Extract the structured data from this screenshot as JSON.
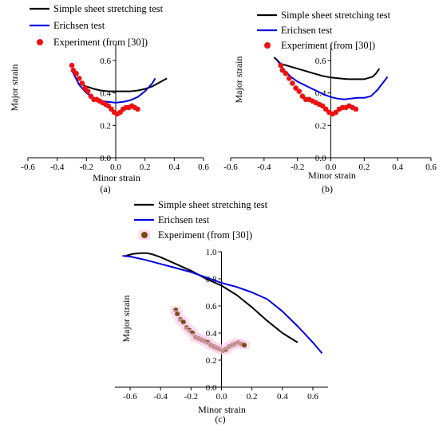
{
  "chart_data": [
    {
      "type": "line",
      "panel_label": "(a)",
      "xlabel": "Minor strain",
      "ylabel": "Major strain",
      "xlim": [
        -0.6,
        0.6
      ],
      "ylim": [
        0.0,
        0.7
      ],
      "xticks": [
        "-0.6",
        "-0.4",
        "-0.2",
        "0.0",
        "0.2",
        "0.4",
        "0.6"
      ],
      "yticks": [
        "0.0",
        "0.2",
        "0.4",
        "0.6"
      ],
      "legend_position": "top-left",
      "series": [
        {
          "name": "Simple sheet stretching test",
          "kind": "line",
          "color": "#000000",
          "x": [
            -0.25,
            -0.2,
            -0.15,
            -0.1,
            -0.05,
            0.0,
            0.05,
            0.1,
            0.15,
            0.2,
            0.25,
            0.3,
            0.35
          ],
          "y": [
            0.46,
            0.44,
            0.425,
            0.415,
            0.41,
            0.41,
            0.41,
            0.41,
            0.415,
            0.425,
            0.44,
            0.465,
            0.49
          ]
        },
        {
          "name": "Erichsen test",
          "kind": "line",
          "color": "#0000dd",
          "x": [
            -0.3,
            -0.25,
            -0.2,
            -0.15,
            -0.1,
            -0.05,
            0.0,
            0.05,
            0.1,
            0.15,
            0.2,
            0.25,
            0.27
          ],
          "y": [
            0.54,
            0.45,
            0.4,
            0.37,
            0.35,
            0.345,
            0.34,
            0.345,
            0.355,
            0.375,
            0.41,
            0.46,
            0.49
          ]
        },
        {
          "name": "Experiment (from [30])",
          "kind": "scatter",
          "color": "#ee1111",
          "x": [
            -0.3,
            -0.29,
            -0.27,
            -0.25,
            -0.23,
            -0.21,
            -0.19,
            -0.17,
            -0.15,
            -0.13,
            -0.11,
            -0.09,
            -0.07,
            -0.05,
            -0.03,
            -0.01,
            0.01,
            0.03,
            0.05,
            0.07,
            0.09,
            0.11,
            0.13,
            0.15
          ],
          "y": [
            0.57,
            0.54,
            0.52,
            0.49,
            0.46,
            0.43,
            0.41,
            0.38,
            0.36,
            0.36,
            0.35,
            0.34,
            0.33,
            0.32,
            0.3,
            0.28,
            0.27,
            0.28,
            0.3,
            0.31,
            0.31,
            0.32,
            0.31,
            0.3
          ]
        }
      ]
    },
    {
      "type": "line",
      "panel_label": "(b)",
      "xlabel": "Minor strain",
      "ylabel": "Major strain",
      "xlim": [
        -0.6,
        0.6
      ],
      "ylim": [
        0.0,
        0.7
      ],
      "xticks": [
        "-0.6",
        "-0.4",
        "-0.2",
        "0.0",
        "0.2",
        "0.4",
        "0.6"
      ],
      "yticks": [
        "0.0",
        "0.2",
        "0.4",
        "0.6"
      ],
      "legend_position": "top-left",
      "series": [
        {
          "name": "Simple sheet stretching test",
          "kind": "line",
          "color": "#000000",
          "x": [
            -0.34,
            -0.3,
            -0.25,
            -0.2,
            -0.15,
            -0.1,
            -0.05,
            0.0,
            0.05,
            0.1,
            0.15,
            0.2,
            0.25,
            0.27,
            0.29
          ],
          "y": [
            0.62,
            0.58,
            0.565,
            0.55,
            0.535,
            0.52,
            0.505,
            0.495,
            0.49,
            0.485,
            0.485,
            0.485,
            0.5,
            0.52,
            0.55
          ]
        },
        {
          "name": "Erichsen test",
          "kind": "line",
          "color": "#0000dd",
          "x": [
            -0.32,
            -0.28,
            -0.24,
            -0.2,
            -0.16,
            -0.12,
            -0.08,
            -0.04,
            0.0,
            0.04,
            0.08,
            0.12,
            0.16,
            0.2,
            0.24,
            0.28,
            0.31,
            0.34
          ],
          "y": [
            0.6,
            0.54,
            0.5,
            0.47,
            0.45,
            0.43,
            0.41,
            0.39,
            0.375,
            0.365,
            0.36,
            0.365,
            0.37,
            0.37,
            0.38,
            0.42,
            0.46,
            0.5
          ]
        },
        {
          "name": "Experiment (from [30])",
          "kind": "scatter",
          "color": "#ee1111",
          "x": [
            -0.3,
            -0.29,
            -0.27,
            -0.25,
            -0.23,
            -0.21,
            -0.19,
            -0.17,
            -0.15,
            -0.13,
            -0.11,
            -0.09,
            -0.07,
            -0.05,
            -0.03,
            -0.01,
            0.01,
            0.03,
            0.05,
            0.07,
            0.09,
            0.11,
            0.13,
            0.15
          ],
          "y": [
            0.57,
            0.54,
            0.52,
            0.49,
            0.46,
            0.43,
            0.41,
            0.38,
            0.36,
            0.36,
            0.35,
            0.34,
            0.33,
            0.32,
            0.3,
            0.28,
            0.27,
            0.28,
            0.3,
            0.31,
            0.31,
            0.32,
            0.31,
            0.3
          ]
        }
      ]
    },
    {
      "type": "line",
      "panel_label": "(c)",
      "xlabel": "Minor strain",
      "ylabel": "Major strain",
      "xlim": [
        -0.7,
        0.7
      ],
      "ylim": [
        0.0,
        1.0
      ],
      "xticks": [
        "-0.6",
        "-0.4",
        "-0.2",
        "0.0",
        "0.2",
        "0.4",
        "0.6"
      ],
      "yticks": [
        "0.0",
        "0.2",
        "0.4",
        "0.6",
        "0.8",
        "1.0"
      ],
      "legend_position": "top-left",
      "series": [
        {
          "name": "Simple sheet stretching test",
          "kind": "line",
          "color": "#000000",
          "x": [
            -0.63,
            -0.58,
            -0.53,
            -0.49,
            -0.45,
            -0.4,
            -0.3,
            -0.2,
            -0.1,
            0.0,
            0.1,
            0.2,
            0.3,
            0.4,
            0.5
          ],
          "y": [
            0.97,
            0.985,
            0.99,
            0.99,
            0.98,
            0.96,
            0.91,
            0.86,
            0.8,
            0.75,
            0.68,
            0.59,
            0.49,
            0.4,
            0.33
          ]
        },
        {
          "name": "Erichsen test",
          "kind": "line",
          "color": "#0000dd",
          "x": [
            -0.65,
            -0.6,
            -0.5,
            -0.4,
            -0.3,
            -0.2,
            -0.1,
            0.0,
            0.1,
            0.2,
            0.3,
            0.4,
            0.5,
            0.6,
            0.66
          ],
          "y": [
            0.97,
            0.965,
            0.94,
            0.91,
            0.88,
            0.85,
            0.81,
            0.77,
            0.74,
            0.7,
            0.65,
            0.56,
            0.45,
            0.33,
            0.25
          ]
        },
        {
          "name": "Experiment (from [30])",
          "kind": "scatter",
          "color": "#7a4a10",
          "x": [
            -0.3,
            -0.29,
            -0.27,
            -0.25,
            -0.23,
            -0.21,
            -0.19,
            -0.17,
            -0.15,
            -0.13,
            -0.11,
            -0.09,
            -0.07,
            -0.05,
            -0.03,
            -0.01,
            0.01,
            0.03,
            0.05,
            0.07,
            0.09,
            0.11,
            0.13,
            0.15
          ],
          "y": [
            0.57,
            0.54,
            0.5,
            0.48,
            0.44,
            0.42,
            0.4,
            0.37,
            0.36,
            0.35,
            0.34,
            0.33,
            0.31,
            0.3,
            0.29,
            0.28,
            0.27,
            0.28,
            0.3,
            0.31,
            0.32,
            0.33,
            0.32,
            0.31
          ]
        }
      ]
    }
  ]
}
